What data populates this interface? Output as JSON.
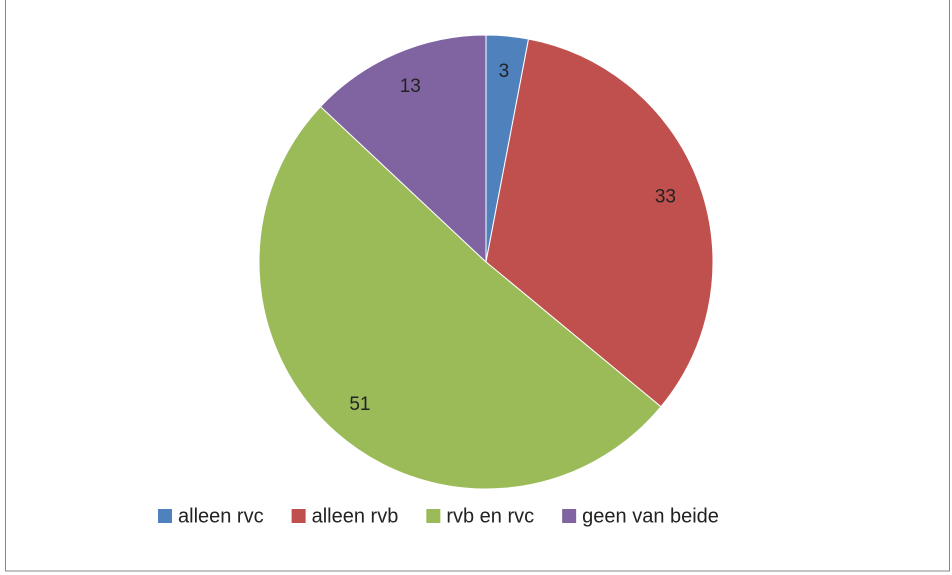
{
  "chart_data": {
    "type": "pie",
    "categories": [
      "alleen rvc",
      "alleen rvb",
      "rvb en rvc",
      "geen van beide"
    ],
    "values": [
      3,
      33,
      51,
      13
    ],
    "colors": [
      "#4f81bd",
      "#c0504d",
      "#9bbb59",
      "#8064a2"
    ],
    "legend": "bottom"
  }
}
